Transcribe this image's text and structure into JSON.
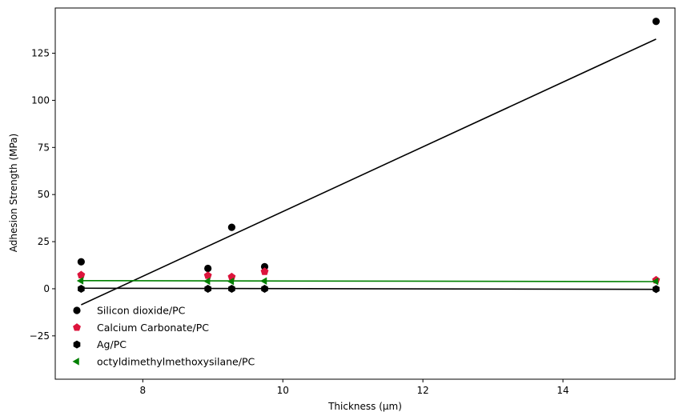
{
  "chart_data": {
    "type": "scatter",
    "title": "",
    "xlabel": "Thickness (µm)",
    "ylabel": "Adhesion Strength (MPa)",
    "xlim": [
      6.75,
      15.6
    ],
    "ylim": [
      -48,
      149
    ],
    "xticks": [
      8,
      10,
      12,
      14
    ],
    "yticks": [
      -25,
      0,
      25,
      50,
      75,
      100,
      125
    ],
    "grid": false,
    "legend_position": "lower-left",
    "series": [
      {
        "name": "Silicon dioxide/PC",
        "marker": "circle",
        "color": "#000000",
        "x": [
          7.12,
          8.93,
          9.27,
          9.74,
          15.33
        ],
        "y": [
          14.3,
          10.8,
          32.6,
          11.7,
          141.9
        ],
        "fit": {
          "x": [
            7.12,
            15.33
          ],
          "y": [
            -8.5,
            132.5
          ],
          "color": "#000000"
        }
      },
      {
        "name": "Calcium Carbonate/PC",
        "marker": "pentagon",
        "color": "#dc143c",
        "x": [
          7.12,
          8.93,
          9.27,
          9.74,
          15.33
        ],
        "y": [
          7.3,
          7.0,
          6.3,
          9.1,
          4.6
        ],
        "fit": null
      },
      {
        "name": "Ag/PC",
        "marker": "hexagon",
        "color": "#000000",
        "x": [
          7.12,
          8.93,
          9.27,
          9.74,
          15.33
        ],
        "y": [
          0.0,
          0.0,
          0.0,
          0.0,
          -0.2
        ],
        "fit": {
          "x": [
            7.12,
            15.33
          ],
          "y": [
            0.3,
            -0.3
          ],
          "color": "#000000"
        }
      },
      {
        "name": "octyldimethylmethoxysilane/PC",
        "marker": "triangle-left",
        "color": "#008000",
        "x": [
          7.12,
          8.93,
          9.27,
          9.74,
          15.33
        ],
        "y": [
          4.2,
          4.0,
          3.9,
          4.1,
          3.9
        ],
        "fit": {
          "x": [
            7.12,
            15.33
          ],
          "y": [
            4.3,
            3.8
          ],
          "color": "#008000"
        }
      }
    ]
  }
}
